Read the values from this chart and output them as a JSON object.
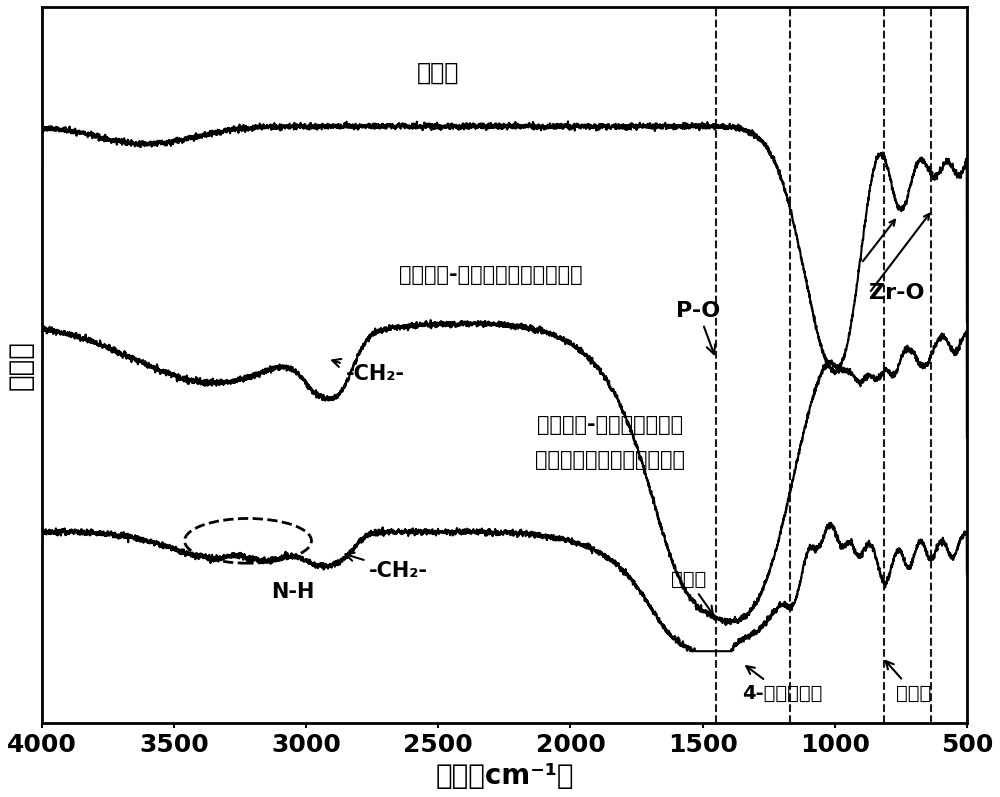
{
  "xlabel": "波长（cm⁻¹）",
  "ylabel": "透过率",
  "xlim": [
    4000,
    500
  ],
  "xticks": [
    4000,
    3500,
    3000,
    2500,
    2000,
    1500,
    1000,
    500
  ],
  "dashed_lines": [
    1450,
    1170,
    815,
    635
  ],
  "label1": "磷酸锰",
  "label2": "共聚型氮-磷大分子膨胀型阻燃剂",
  "label3_line1": "共聚型氮-磷大分子膨胀型",
  "label3_line2": "阻燃剂修饰层状纳米磷酸锰",
  "annotation_PO": "P-O",
  "annotation_ZrO": "Zr-O",
  "annotation_CH2_2": "-CH₂-",
  "annotation_CH2_3": "-CH₂-",
  "annotation_NH": "N-H",
  "annotation_triazine_1": "三噘环",
  "annotation_pyridine": "4-取代吠啊环",
  "annotation_triazine_2": "三噘环",
  "bg_color": "#ffffff",
  "line_color": "#000000",
  "fontsize_label": 20,
  "fontsize_tick": 18,
  "fontsize_annotation": 15
}
